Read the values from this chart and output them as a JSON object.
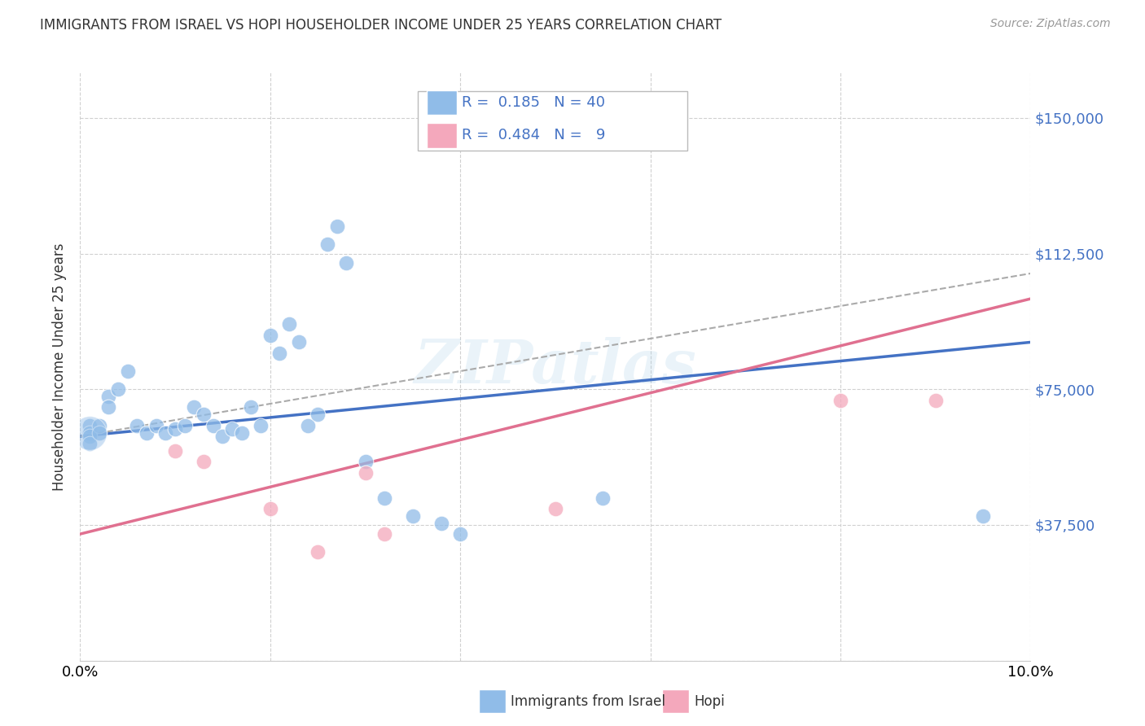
{
  "title": "IMMIGRANTS FROM ISRAEL VS HOPI HOUSEHOLDER INCOME UNDER 25 YEARS CORRELATION CHART",
  "source": "Source: ZipAtlas.com",
  "ylabel": "Householder Income Under 25 years",
  "xlim": [
    0.0,
    0.1
  ],
  "ylim": [
    0,
    162500
  ],
  "xticks": [
    0.0,
    0.02,
    0.04,
    0.06,
    0.08,
    0.1
  ],
  "ytick_vals": [
    0,
    37500,
    75000,
    112500,
    150000
  ],
  "ytick_labels": [
    "",
    "$37,500",
    "$75,000",
    "$112,500",
    "$150,000"
  ],
  "grid_color": "#d0d0d0",
  "background_color": "#ffffff",
  "blue_color": "#90bce8",
  "pink_color": "#f4a8bc",
  "blue_line_color": "#4472c4",
  "pink_line_color": "#e07090",
  "legend_R1": "0.185",
  "legend_N1": "40",
  "legend_R2": "0.484",
  "legend_N2": "9",
  "blue_scatter_x": [
    0.001,
    0.001,
    0.001,
    0.001,
    0.002,
    0.002,
    0.003,
    0.003,
    0.004,
    0.005,
    0.006,
    0.007,
    0.008,
    0.009,
    0.01,
    0.011,
    0.012,
    0.013,
    0.014,
    0.015,
    0.016,
    0.017,
    0.018,
    0.019,
    0.02,
    0.021,
    0.022,
    0.023,
    0.024,
    0.025,
    0.026,
    0.027,
    0.028,
    0.03,
    0.032,
    0.035,
    0.038,
    0.04,
    0.055,
    0.095
  ],
  "blue_scatter_y": [
    65000,
    63000,
    62000,
    60000,
    65000,
    63000,
    73000,
    70000,
    75000,
    80000,
    65000,
    63000,
    65000,
    63000,
    64000,
    65000,
    70000,
    68000,
    65000,
    62000,
    64000,
    63000,
    70000,
    65000,
    90000,
    85000,
    93000,
    88000,
    65000,
    68000,
    115000,
    120000,
    110000,
    55000,
    45000,
    40000,
    38000,
    35000,
    45000,
    40000
  ],
  "pink_scatter_x": [
    0.01,
    0.013,
    0.02,
    0.025,
    0.03,
    0.032,
    0.05,
    0.08,
    0.09
  ],
  "pink_scatter_y": [
    58000,
    55000,
    42000,
    30000,
    52000,
    35000,
    42000,
    72000,
    72000
  ],
  "blue_trend_x": [
    0.0,
    0.1
  ],
  "blue_trend_y": [
    62000,
    88000
  ],
  "pink_trend_x": [
    0.0,
    0.1
  ],
  "pink_trend_y": [
    35000,
    100000
  ],
  "dashed_trend_x": [
    0.0,
    0.1
  ],
  "dashed_trend_y": [
    62000,
    107000
  ]
}
